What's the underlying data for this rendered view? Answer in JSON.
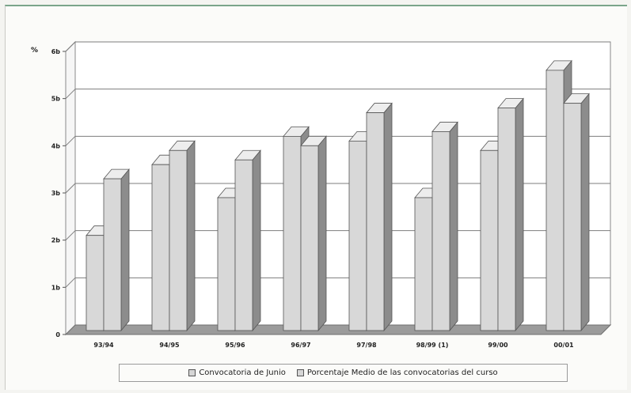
{
  "chart_data": {
    "type": "bar",
    "style": "3d-clustered",
    "unit_label": "%",
    "categories": [
      "93/94",
      "94/95",
      "95/96",
      "96/97",
      "97/98",
      "98/99 (1)",
      "99/00",
      "00/01"
    ],
    "y_ticks": [
      "0",
      "1b",
      "2b",
      "3b",
      "4b",
      "5b",
      "6b"
    ],
    "ylim": [
      0,
      6
    ],
    "grid": true,
    "legend_position": "bottom",
    "series": [
      {
        "name": "Convocatoria de Junio",
        "values": [
          2.1,
          3.6,
          2.9,
          4.2,
          4.1,
          2.9,
          3.9,
          5.6
        ]
      },
      {
        "name": "Porcentaje Medio de las convocatorias del curso",
        "values": [
          3.3,
          3.9,
          3.7,
          4.0,
          4.7,
          4.3,
          4.8,
          4.9
        ]
      }
    ],
    "colors": {
      "bar_front": "#d8d8d8",
      "bar_top": "#ededed",
      "bar_side": "#8c8c8c",
      "floor": "#9b9b9b",
      "wall_top": "#8f8f8f"
    }
  }
}
